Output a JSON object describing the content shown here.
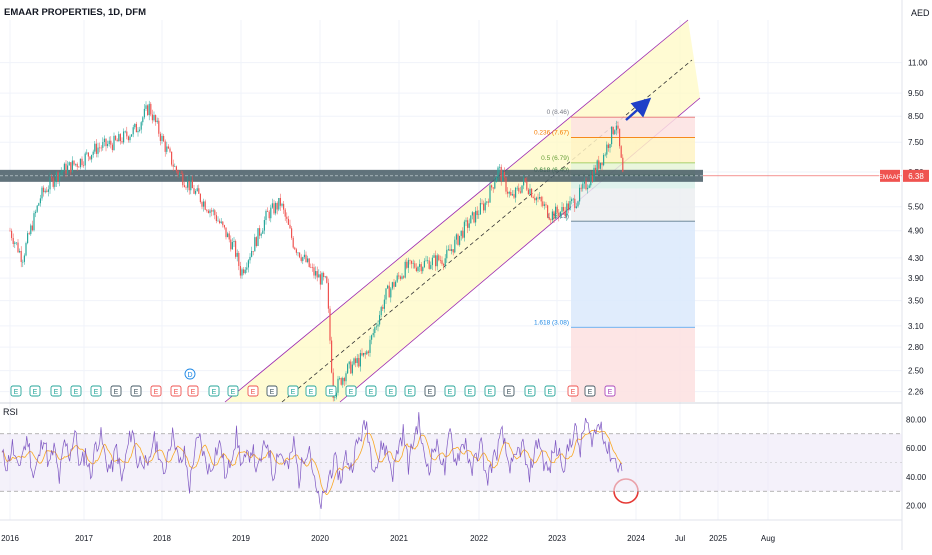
{
  "header": {
    "symbol_title": "EMAAR PROPERTIES, 1D, DFM",
    "currency": "AED"
  },
  "colors": {
    "up": "#26a69a",
    "down": "#ef5350",
    "channel_line": "#9c27b0",
    "channel_fill": "#fff9c4",
    "rsi_line": "#7e57c2",
    "rsi_ma": "#f9a825",
    "arrow": "#1e40c8",
    "support_band": "#455a64",
    "price_tag": "#ef5350",
    "circle": "#e53935"
  },
  "chart_data": [
    {
      "type": "candlestick",
      "title": "EMAAR PROPERTIES, 1D, DFM",
      "y_scale": "log",
      "ylim": [
        2.15,
        13.5
      ],
      "y_ticks": [
        "11.00",
        "9.50",
        "8.50",
        "7.50",
        "6.50",
        "5.50",
        "4.90",
        "4.30",
        "3.90",
        "3.50",
        "3.10",
        "2.80",
        "2.50",
        "2.26"
      ],
      "x_ticks": [
        "2016",
        "2017",
        "2018",
        "2019",
        "2020",
        "2021",
        "2022",
        "2023",
        "2024",
        "Jul",
        "2025",
        "Aug"
      ],
      "last_price": {
        "label": "EMAAR",
        "value": "6.38"
      },
      "series": [
        {
          "points": [
            [
              "2016-01",
              4.9
            ],
            [
              "2016-03",
              4.3
            ],
            [
              "2016-06",
              5.8
            ],
            [
              "2016-09",
              6.5
            ],
            [
              "2016-12",
              6.8
            ],
            [
              "2017-03",
              7.3
            ],
            [
              "2017-06",
              7.5
            ],
            [
              "2017-09",
              8.0
            ],
            [
              "2017-11",
              8.9
            ],
            [
              "2018-01",
              7.6
            ],
            [
              "2018-03",
              6.6
            ],
            [
              "2018-06",
              5.9
            ],
            [
              "2018-09",
              5.3
            ],
            [
              "2018-12",
              4.5
            ],
            [
              "2019-01",
              4.0
            ],
            [
              "2019-03",
              4.6
            ],
            [
              "2019-05",
              5.3
            ],
            [
              "2019-07",
              5.6
            ],
            [
              "2019-09",
              4.6
            ],
            [
              "2019-12",
              4.0
            ],
            [
              "2020-02",
              3.8
            ],
            [
              "2020-03",
              2.25
            ],
            [
              "2020-05",
              2.5
            ],
            [
              "2020-08",
              2.7
            ],
            [
              "2020-11",
              3.6
            ],
            [
              "2021-02",
              4.1
            ],
            [
              "2021-05",
              4.2
            ],
            [
              "2021-08",
              4.3
            ],
            [
              "2021-11",
              5.0
            ],
            [
              "2022-02",
              5.6
            ],
            [
              "2022-04",
              6.6
            ],
            [
              "2022-06",
              5.7
            ],
            [
              "2022-08",
              6.2
            ],
            [
              "2022-10",
              5.7
            ],
            [
              "2022-12",
              5.3
            ],
            [
              "2023-02",
              5.4
            ],
            [
              "2023-04",
              5.7
            ],
            [
              "2023-06",
              6.3
            ],
            [
              "2023-08",
              7.0
            ],
            [
              "2023-10",
              8.3
            ],
            [
              "2023-11",
              6.38
            ]
          ]
        }
      ],
      "fibonacci": [
        {
          "label": "0 (8.46)",
          "value": 8.46
        },
        {
          "label": "0.236 (7.67)",
          "value": 7.67
        },
        {
          "label": "0.5 (6.79)",
          "value": 6.79
        },
        {
          "label": "0.618 (6.40)",
          "value": 6.4
        },
        {
          "label": "1 (5.13)",
          "value": 5.13
        },
        {
          "label": "1.618 (3.08)",
          "value": 3.08
        }
      ],
      "earnings_markers": [
        "E",
        "E",
        "E",
        "E",
        "E",
        "E",
        "E",
        "E",
        "E",
        "E",
        "E",
        "E",
        "E",
        "E",
        "E",
        "E",
        "E",
        "E",
        "E",
        "E",
        "E",
        "E",
        "E",
        "E",
        "E",
        "E",
        "E",
        "E",
        "E",
        "E",
        "E"
      ],
      "dividend_marker": "D"
    },
    {
      "type": "line",
      "title": "RSI",
      "ylim": [
        10,
        90
      ],
      "y_ticks": [
        "80.00",
        "60.00",
        "40.00",
        "20.00"
      ],
      "bands": {
        "upper": 70,
        "lower": 30
      },
      "series": [
        {
          "points": [
            55,
            48,
            62,
            44,
            58,
            66,
            40,
            52,
            70,
            47,
            60,
            38,
            64,
            55,
            72,
            46,
            57,
            41,
            63,
            68,
            50,
            45,
            61,
            36,
            58,
            74,
            49,
            54,
            43,
            67,
            59,
            39,
            62,
            71,
            47,
            56,
            33,
            60,
            66,
            51,
            44,
            58,
            63,
            37,
            55,
            69,
            48,
            52,
            61,
            42,
            57,
            65,
            40,
            59,
            53,
            46,
            64,
            38,
            56,
            62,
            35,
            20,
            27,
            44,
            50,
            38,
            55,
            46,
            61,
            70,
            77,
            52,
            48,
            63,
            57,
            42,
            60,
            71,
            48,
            66,
            80,
            53,
            47,
            62,
            58,
            44,
            72,
            51,
            59,
            66,
            41,
            55,
            63,
            37,
            49,
            58,
            70,
            52,
            46,
            57,
            62,
            39,
            54,
            67,
            50,
            43,
            61,
            56,
            48,
            64,
            73,
            58,
            80,
            66,
            72,
            78,
            60,
            55,
            50,
            44
          ]
        }
      ]
    }
  ]
}
